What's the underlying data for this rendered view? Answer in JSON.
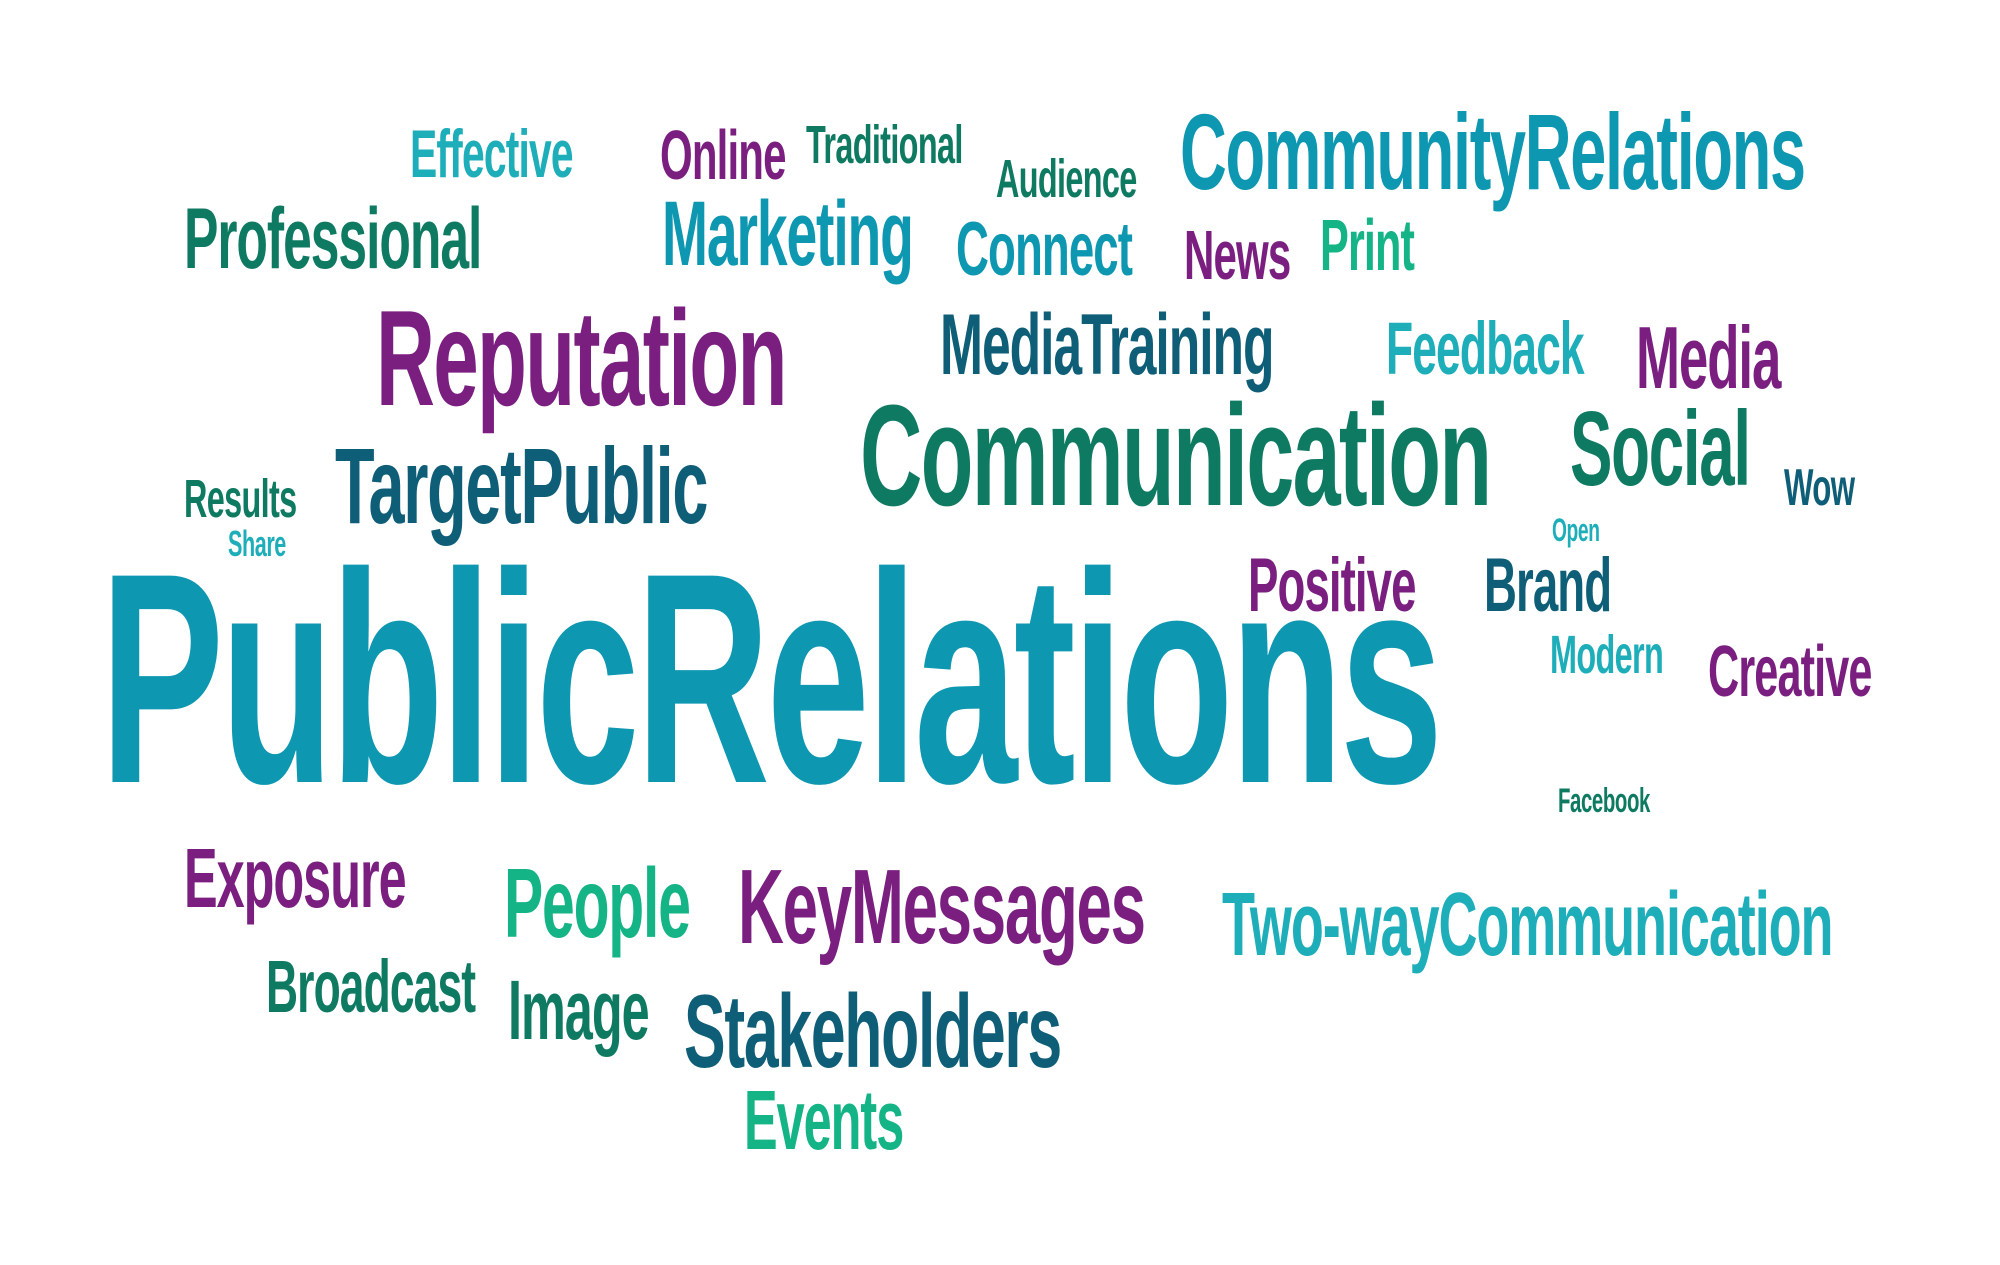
{
  "colors": {
    "teal": "#0E97B1",
    "aqua": "#1DAEB9",
    "green": "#0F7A62",
    "mint": "#15B486",
    "navy": "#0F5E78",
    "purple": "#7A1E7F"
  },
  "words": {
    "public_relations": "PublicRelations",
    "communication": "Communication",
    "reputation": "Reputation",
    "community_relations": "CommunityRelations",
    "target_public": "TargetPublic",
    "key_messages": "KeyMessages",
    "two_way_communication": "Two-wayCommunication",
    "stakeholders": "Stakeholders",
    "media_training": "MediaTraining",
    "marketing": "Marketing",
    "professional": "Professional",
    "social": "Social",
    "media": "Media",
    "people": "People",
    "exposure": "Exposure",
    "image": "Image",
    "broadcast": "Broadcast",
    "events": "Events",
    "feedback": "Feedback",
    "positive": "Positive",
    "brand": "Brand",
    "creative": "Creative",
    "modern": "Modern",
    "connect": "Connect",
    "news": "News",
    "print": "Print",
    "effective": "Effective",
    "online": "Online",
    "traditional": "Traditional",
    "audience": "Audience",
    "results": "Results",
    "share": "Share",
    "wow": "Wow",
    "open": "Open",
    "facebook": "Facebook"
  }
}
